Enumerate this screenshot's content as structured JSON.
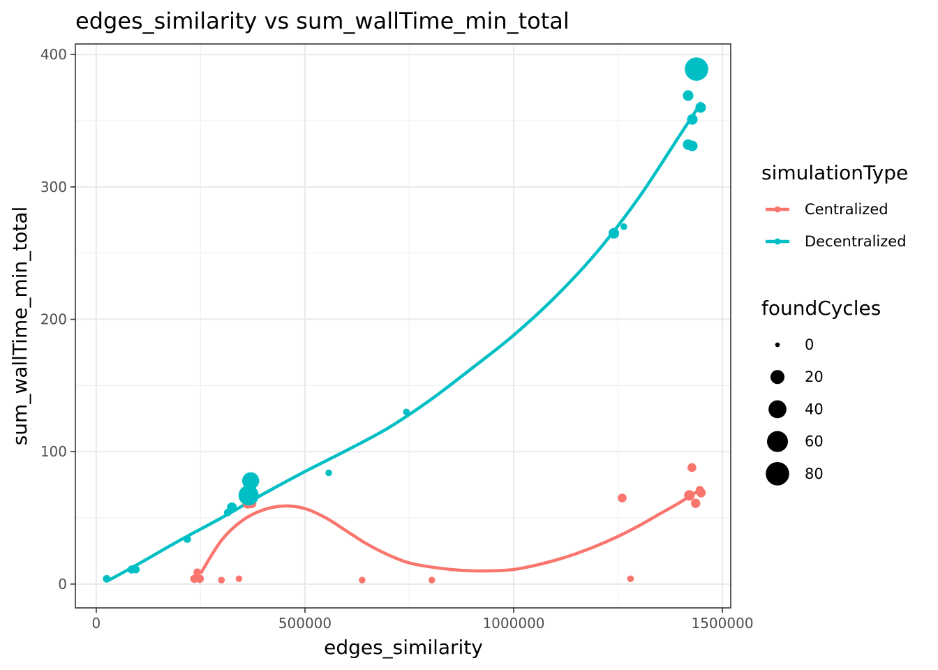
{
  "chart_data": {
    "type": "scatter",
    "title": "edges_similarity  vs  sum_wallTime_min_total",
    "xlabel": "edges_similarity",
    "ylabel": "sum_wallTime_min_total",
    "xlim": [
      -50000,
      1520000
    ],
    "ylim": [
      -18,
      408
    ],
    "x_ticks": [
      0,
      500000,
      1000000,
      1500000
    ],
    "x_tick_labels": [
      "0",
      "500000",
      "1000000",
      "1500000"
    ],
    "y_ticks": [
      0,
      100,
      200,
      300,
      400
    ],
    "y_tick_labels": [
      "0",
      "100",
      "200",
      "300",
      "400"
    ],
    "grid": true,
    "legend_placement": "right",
    "color_legend": {
      "title": "simulationType",
      "entries": [
        {
          "label": "Centralized",
          "color": "#F8766D"
        },
        {
          "label": "Decentralized",
          "color": "#00BFC4"
        }
      ]
    },
    "size_legend": {
      "title": "foundCycles",
      "entries": [
        {
          "label": "0",
          "value": 0
        },
        {
          "label": "20",
          "value": 20
        },
        {
          "label": "40",
          "value": 40
        },
        {
          "label": "60",
          "value": 60
        },
        {
          "label": "80",
          "value": 80
        }
      ]
    },
    "series": [
      {
        "name": "Centralized",
        "color": "#F8766D",
        "points": [
          {
            "x": 235000,
            "y": 4,
            "size": 3
          },
          {
            "x": 242000,
            "y": 9,
            "size": 2
          },
          {
            "x": 248000,
            "y": 4,
            "size": 3
          },
          {
            "x": 300000,
            "y": 3,
            "size": 1
          },
          {
            "x": 342000,
            "y": 4,
            "size": 1
          },
          {
            "x": 363000,
            "y": 61,
            "size": 8
          },
          {
            "x": 372000,
            "y": 61,
            "size": 6
          },
          {
            "x": 637000,
            "y": 3,
            "size": 1
          },
          {
            "x": 804000,
            "y": 3,
            "size": 1
          },
          {
            "x": 1260000,
            "y": 65,
            "size": 4
          },
          {
            "x": 1280000,
            "y": 4,
            "size": 1
          },
          {
            "x": 1421000,
            "y": 67,
            "size": 8
          },
          {
            "x": 1427000,
            "y": 88,
            "size": 4
          },
          {
            "x": 1436000,
            "y": 61,
            "size": 5
          },
          {
            "x": 1446000,
            "y": 71,
            "size": 3
          },
          {
            "x": 1449000,
            "y": 69,
            "size": 5
          }
        ],
        "trend": [
          {
            "x": 250000,
            "y": 8
          },
          {
            "x": 300000,
            "y": 33
          },
          {
            "x": 350000,
            "y": 48
          },
          {
            "x": 400000,
            "y": 56
          },
          {
            "x": 450000,
            "y": 59
          },
          {
            "x": 500000,
            "y": 57
          },
          {
            "x": 550000,
            "y": 50
          },
          {
            "x": 600000,
            "y": 40
          },
          {
            "x": 650000,
            "y": 30
          },
          {
            "x": 700000,
            "y": 22
          },
          {
            "x": 750000,
            "y": 16
          },
          {
            "x": 800000,
            "y": 13
          },
          {
            "x": 850000,
            "y": 11
          },
          {
            "x": 900000,
            "y": 10
          },
          {
            "x": 950000,
            "y": 10
          },
          {
            "x": 1000000,
            "y": 11
          },
          {
            "x": 1050000,
            "y": 14
          },
          {
            "x": 1100000,
            "y": 18
          },
          {
            "x": 1150000,
            "y": 23
          },
          {
            "x": 1200000,
            "y": 29
          },
          {
            "x": 1250000,
            "y": 36
          },
          {
            "x": 1300000,
            "y": 44
          },
          {
            "x": 1350000,
            "y": 53
          },
          {
            "x": 1400000,
            "y": 62
          },
          {
            "x": 1450000,
            "y": 72
          }
        ]
      },
      {
        "name": "Decentralized",
        "color": "#00BFC4",
        "points": [
          {
            "x": 25000,
            "y": 4,
            "size": 2
          },
          {
            "x": 85000,
            "y": 11,
            "size": 3
          },
          {
            "x": 95000,
            "y": 11,
            "size": 2
          },
          {
            "x": 218000,
            "y": 34,
            "size": 2
          },
          {
            "x": 315000,
            "y": 54,
            "size": 2
          },
          {
            "x": 325000,
            "y": 58,
            "size": 6
          },
          {
            "x": 365000,
            "y": 67,
            "size": 55
          },
          {
            "x": 370000,
            "y": 78,
            "size": 35
          },
          {
            "x": 557000,
            "y": 84,
            "size": 1
          },
          {
            "x": 743000,
            "y": 130,
            "size": 1
          },
          {
            "x": 1240000,
            "y": 265,
            "size": 8
          },
          {
            "x": 1264000,
            "y": 270,
            "size": 1
          },
          {
            "x": 1418000,
            "y": 369,
            "size": 8
          },
          {
            "x": 1418000,
            "y": 332,
            "size": 8
          },
          {
            "x": 1428000,
            "y": 331,
            "size": 8
          },
          {
            "x": 1428000,
            "y": 351,
            "size": 8
          },
          {
            "x": 1438000,
            "y": 389,
            "size": 80
          },
          {
            "x": 1448000,
            "y": 360,
            "size": 8
          }
        ],
        "trend": [
          {
            "x": 25000,
            "y": 2
          },
          {
            "x": 100000,
            "y": 15
          },
          {
            "x": 200000,
            "y": 33
          },
          {
            "x": 300000,
            "y": 50
          },
          {
            "x": 400000,
            "y": 68
          },
          {
            "x": 500000,
            "y": 85
          },
          {
            "x": 600000,
            "y": 101
          },
          {
            "x": 700000,
            "y": 118
          },
          {
            "x": 800000,
            "y": 139
          },
          {
            "x": 900000,
            "y": 163
          },
          {
            "x": 1000000,
            "y": 188
          },
          {
            "x": 1100000,
            "y": 217
          },
          {
            "x": 1200000,
            "y": 251
          },
          {
            "x": 1300000,
            "y": 292
          },
          {
            "x": 1400000,
            "y": 340
          },
          {
            "x": 1450000,
            "y": 364
          }
        ]
      }
    ]
  }
}
